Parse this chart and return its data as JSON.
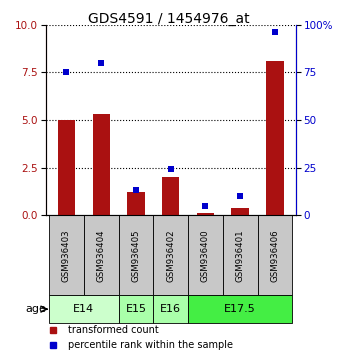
{
  "title": "GDS4591 / 1454976_at",
  "samples": [
    "GSM936403",
    "GSM936404",
    "GSM936405",
    "GSM936402",
    "GSM936400",
    "GSM936401",
    "GSM936406"
  ],
  "transformed_count": [
    5.0,
    5.3,
    1.2,
    2.0,
    0.1,
    0.4,
    8.1
  ],
  "percentile_rank": [
    75,
    80,
    13,
    24,
    5,
    10,
    96
  ],
  "age_groups": [
    {
      "label": "E14",
      "start": 0,
      "end": 2,
      "color": "#ccffcc"
    },
    {
      "label": "E15",
      "start": 2,
      "end": 3,
      "color": "#aaffaa"
    },
    {
      "label": "E16",
      "start": 3,
      "end": 4,
      "color": "#aaffaa"
    },
    {
      "label": "E17.5",
      "start": 4,
      "end": 7,
      "color": "#44ee44"
    }
  ],
  "ylim_left": [
    0,
    10
  ],
  "ylim_right": [
    0,
    100
  ],
  "yticks_left": [
    0,
    2.5,
    5.0,
    7.5,
    10.0
  ],
  "yticks_right": [
    0,
    25,
    50,
    75,
    100
  ],
  "bar_color": "#aa1111",
  "dot_color": "#0000cc",
  "background_color": "#ffffff",
  "sample_bg": "#c8c8c8",
  "bar_width": 0.5,
  "dot_size": 25
}
